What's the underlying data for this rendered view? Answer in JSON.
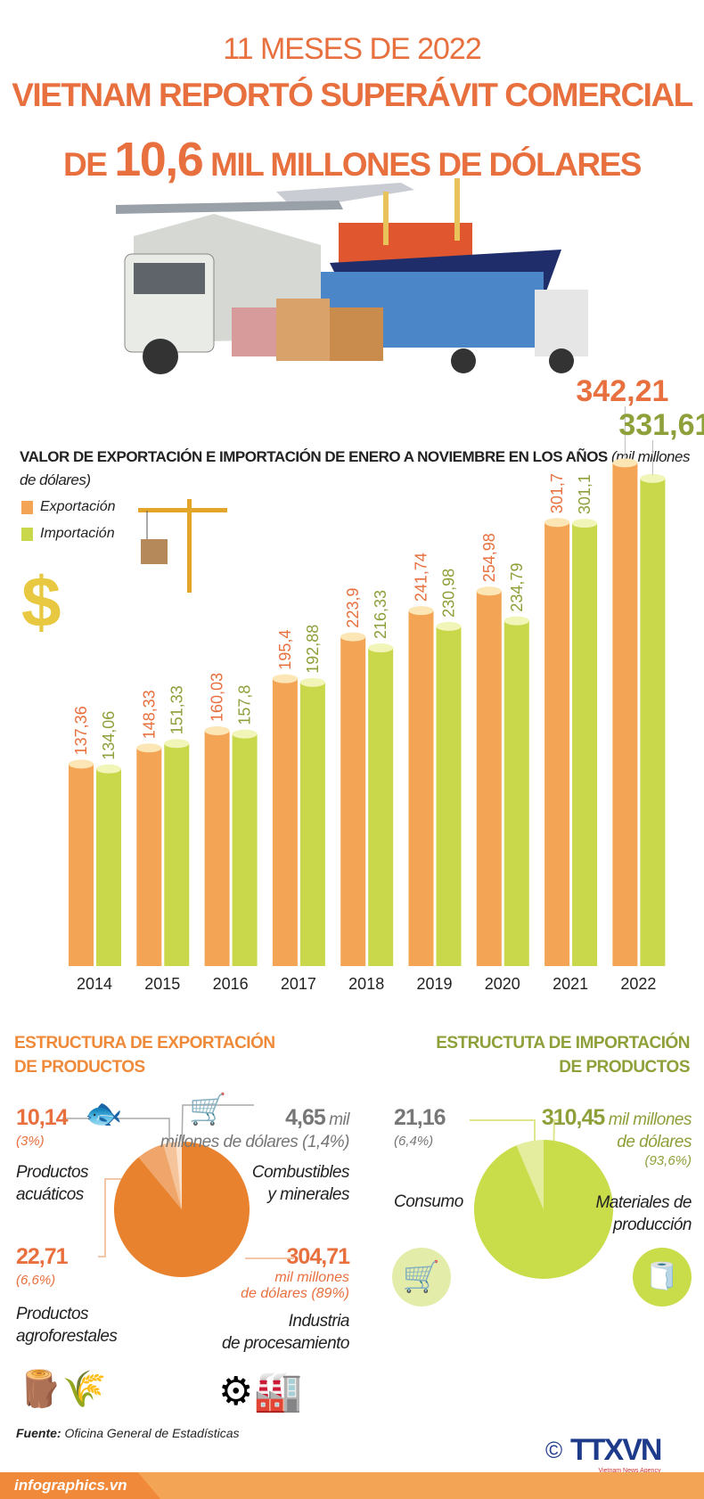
{
  "header": {
    "line1": "11 MESES DE 2022",
    "line2": "VIETNAM REPORTÓ SUPERÁVIT COMERCIAL",
    "line3_prefix": "DE",
    "line3_value": "10,6",
    "line3_suffix": "MIL MILLONES DE DÓLARES"
  },
  "colors": {
    "export": "#f4a455",
    "import": "#c8d84a",
    "title": "#e8703f",
    "export_pie": "#e8822e",
    "import_pie": "#c9dc4a"
  },
  "chart_data": {
    "type": "bar",
    "title": "VALOR DE EXPORTACIÓN E IMPORTACIÓN DE ENERO A NOVIEMBRE EN LOS AÑOS",
    "unit": "(mil millones de dólares)",
    "categories": [
      "2014",
      "2015",
      "2016",
      "2017",
      "2018",
      "2019",
      "2020",
      "2021",
      "2022"
    ],
    "series": [
      {
        "name": "Exportación",
        "values": [
          137.36,
          148.33,
          160.03,
          195.4,
          223.9,
          241.74,
          254.98,
          301.7,
          342.21
        ],
        "labels": [
          "137,36",
          "148,33",
          "160,03",
          "195,4",
          "223,9",
          "241,74",
          "254,98",
          "301,7",
          "342,21"
        ]
      },
      {
        "name": "Importación",
        "values": [
          134.06,
          151.33,
          157.8,
          192.88,
          216.33,
          230.98,
          234.79,
          301.1,
          331.61
        ],
        "labels": [
          "134,06",
          "151,33",
          "157,8",
          "192,88",
          "216,33",
          "230,98",
          "234,79",
          "301,1",
          "331,61"
        ]
      }
    ],
    "ylim": [
      0,
      350
    ],
    "legend": "top-left"
  },
  "export_structure": {
    "title1": "ESTRUCTURA DE EXPORTACIÓN",
    "title2": "DE PRODUCTOS",
    "aquatic": {
      "value": "10,14",
      "pct": "(3%)",
      "label1": "Productos",
      "label2": "acuáticos",
      "share": 3
    },
    "fuel": {
      "value": "4,65",
      "unit1": "mil",
      "unit2": "millones de dólares (1,4%)",
      "label1": "Combustibles",
      "label2": "y minerales",
      "share": 1.4
    },
    "agro": {
      "value": "22,71",
      "pct": "(6,6%)",
      "label1": "Productos",
      "label2": "agroforestales",
      "share": 6.6
    },
    "processing": {
      "value": "304,71",
      "unit1": "mil millones",
      "unit2": "de dólares (89%)",
      "label1": "Industria",
      "label2": "de procesamiento",
      "share": 89
    }
  },
  "import_structure": {
    "title1": "ESTRUCTUTA DE IMPORTACIÓN",
    "title2": "DE PRODUCTOS",
    "consumo": {
      "value": "21,16",
      "pct": "(6,4%)",
      "label": "Consumo",
      "share": 6.4
    },
    "materials": {
      "value": "310,45",
      "unit1": "mil millones",
      "unit2": "de dólares",
      "pct": "(93,6%)",
      "label1": "Materiales de",
      "label2": "producción",
      "share": 93.6
    }
  },
  "footer": {
    "source_label": "Fuente:",
    "source": "Oficina General de Estadísticas",
    "site": "infographics.vn",
    "copyright": "©",
    "logo": "TTXVN",
    "logo_sub": "Vietnam News Agency"
  }
}
